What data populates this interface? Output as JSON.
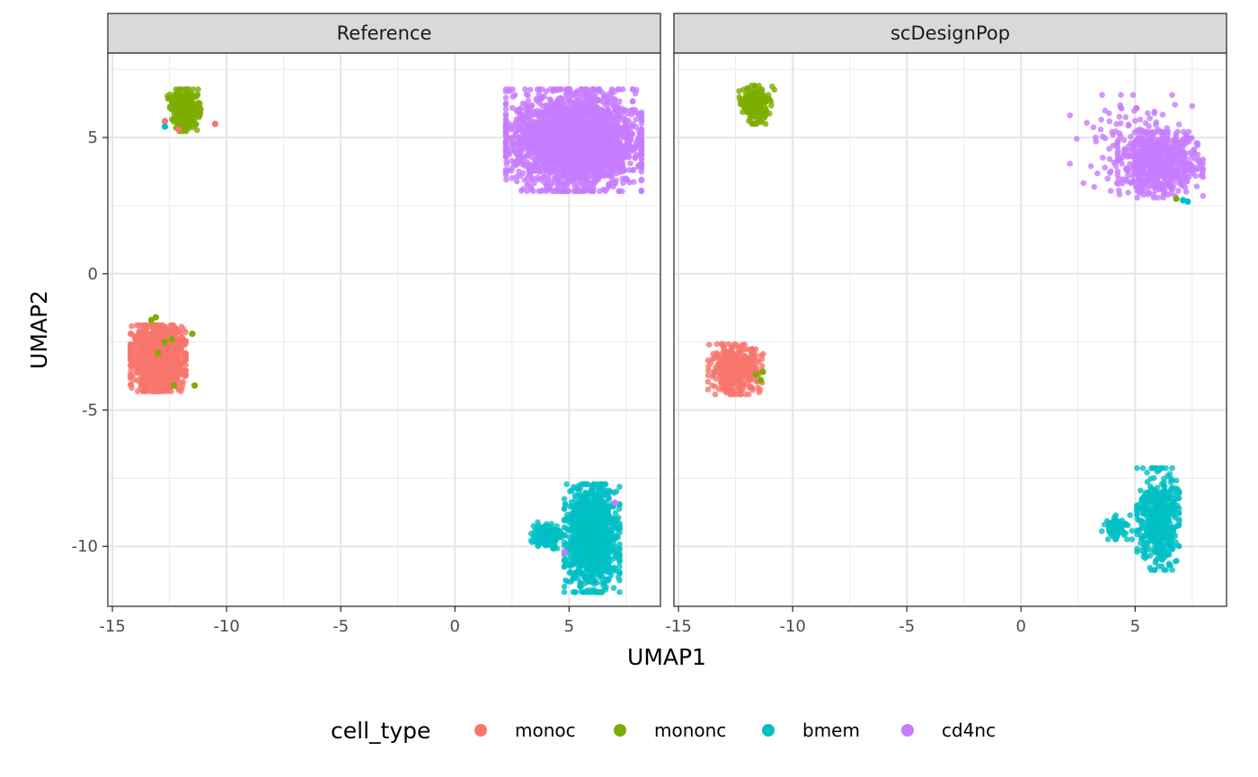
{
  "chart_data": {
    "type": "scatter",
    "facets": [
      {
        "title": "Reference",
        "clusters": [
          {
            "type": "monoc",
            "cx": -13.0,
            "cy": -3.1,
            "sx": 0.55,
            "sy": 0.55,
            "n": 1400
          },
          {
            "type": "mononc",
            "cx": -11.8,
            "cy": 6.0,
            "sx": 0.38,
            "sy": 0.35,
            "n": 420,
            "shape": "tri"
          },
          {
            "type": "cd4nc",
            "cx": 5.2,
            "cy": 4.9,
            "sx": 1.35,
            "sy": 0.85,
            "n": 2600
          },
          {
            "type": "bmem",
            "cx": 6.0,
            "cy": -9.7,
            "sx": 0.55,
            "sy": 0.9,
            "n": 1200
          },
          {
            "type": "bmem",
            "cx": 4.0,
            "cy": -9.6,
            "sx": 0.3,
            "sy": 0.22,
            "n": 160
          }
        ],
        "extra_points": [
          {
            "type": "mononc",
            "x": -13.3,
            "y": -1.7
          },
          {
            "type": "mononc",
            "x": -13.1,
            "y": -1.6
          },
          {
            "type": "mononc",
            "x": -12.7,
            "y": -2.5
          },
          {
            "type": "mononc",
            "x": -12.4,
            "y": -2.4
          },
          {
            "type": "mononc",
            "x": -11.5,
            "y": -2.2
          },
          {
            "type": "mononc",
            "x": -13.0,
            "y": -2.9
          },
          {
            "type": "mononc",
            "x": -12.3,
            "y": -4.1
          },
          {
            "type": "mononc",
            "x": -11.4,
            "y": -4.1
          },
          {
            "type": "monoc",
            "x": -12.7,
            "y": 5.6
          },
          {
            "type": "monoc",
            "x": -12.1,
            "y": 5.3
          },
          {
            "type": "monoc",
            "x": -10.5,
            "y": 5.5
          },
          {
            "type": "bmem",
            "x": -12.7,
            "y": 5.4
          },
          {
            "type": "cd4nc",
            "x": 7.0,
            "y": -8.4
          },
          {
            "type": "cd4nc",
            "x": 4.8,
            "y": -10.2
          }
        ]
      },
      {
        "title": "scDesignPop",
        "clusters": [
          {
            "type": "monoc",
            "cx": -12.5,
            "cy": -3.5,
            "sx": 0.55,
            "sy": 0.42,
            "n": 420
          },
          {
            "type": "mononc",
            "cx": -11.6,
            "cy": 6.2,
            "sx": 0.38,
            "sy": 0.32,
            "n": 210,
            "shape": "tri"
          },
          {
            "type": "cd4nc",
            "cx": 6.1,
            "cy": 4.0,
            "sx": 0.85,
            "sy": 0.55,
            "n": 560
          },
          {
            "type": "cd4nc",
            "cx": 5.0,
            "cy": 4.8,
            "sx": 1.3,
            "sy": 0.8,
            "n": 150
          },
          {
            "type": "bmem",
            "cx": 6.0,
            "cy": -9.0,
            "sx": 0.42,
            "sy": 0.85,
            "n": 520
          },
          {
            "type": "bmem",
            "cx": 4.2,
            "cy": -9.3,
            "sx": 0.3,
            "sy": 0.2,
            "n": 70
          }
        ],
        "extra_points": [
          {
            "type": "mononc",
            "x": -11.3,
            "y": -3.6
          },
          {
            "type": "mononc",
            "x": -11.4,
            "y": -3.9
          },
          {
            "type": "mononc",
            "x": -11.6,
            "y": -3.7
          },
          {
            "type": "bmem",
            "x": 7.1,
            "y": 2.7
          },
          {
            "type": "bmem",
            "x": 7.3,
            "y": 2.65
          },
          {
            "type": "mononc",
            "x": 6.8,
            "y": 2.75
          }
        ]
      }
    ],
    "xlabel": "UMAP1",
    "ylabel": "UMAP2",
    "xlim": [
      -15.2,
      9.0
    ],
    "ylim": [
      -12.2,
      8.1
    ],
    "x_ticks": [
      -15,
      -10,
      -5,
      0,
      5
    ],
    "y_ticks": [
      5,
      0,
      -5,
      -10
    ],
    "x_tick_labels": [
      "-15",
      "-10",
      "-5",
      "0",
      "5"
    ],
    "y_tick_labels": [
      "5",
      "0",
      "-5",
      "-10"
    ],
    "legend": {
      "title": "cell_type",
      "position": "bottom",
      "items": [
        {
          "name": "monoc",
          "color": "#F8766D"
        },
        {
          "name": "mononc",
          "color": "#7CAE00"
        },
        {
          "name": "bmem",
          "color": "#00BFC4"
        },
        {
          "name": "cd4nc",
          "color": "#C77CFF"
        }
      ]
    },
    "grid": true
  }
}
